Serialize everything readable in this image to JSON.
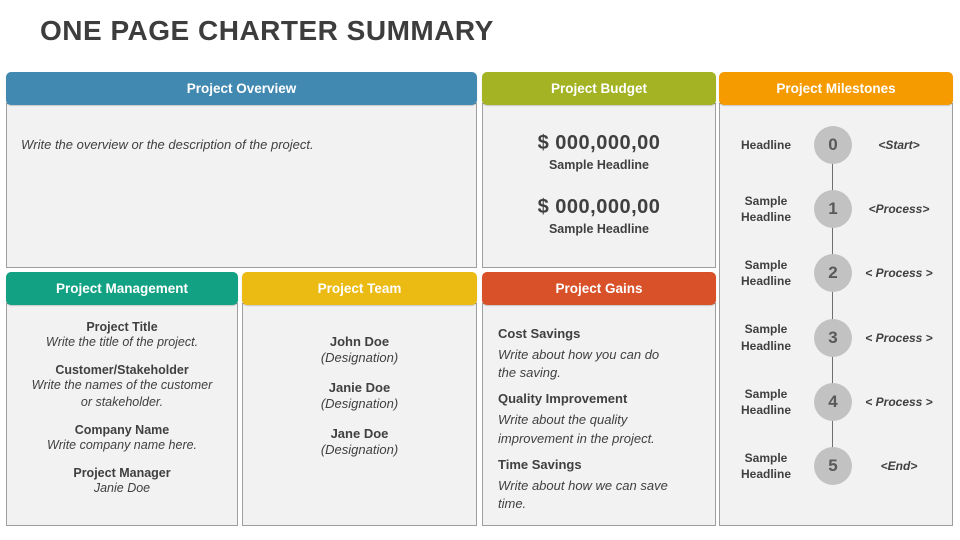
{
  "page_title": "ONE PAGE CHARTER SUMMARY",
  "colors": {
    "overview": "#4289b2",
    "budget": "#a3b324",
    "milestones": "#f59b00",
    "management": "#13a184",
    "team": "#ecbb13",
    "gains": "#d85128",
    "header_text": "#ffffff",
    "body_bg": "#f2f2f2",
    "circle_bg": "#c2c2c2"
  },
  "overview": {
    "header": "Project Overview",
    "body": "Write the overview or the description of the project."
  },
  "budget": {
    "header": "Project Budget",
    "items": [
      {
        "amount": "$ 000,000,00",
        "label": "Sample Headline"
      },
      {
        "amount": "$ 000,000,00",
        "label": "Sample Headline"
      }
    ]
  },
  "milestones": {
    "header": "Project Milestones",
    "items": [
      {
        "headline": "Headline",
        "number": "0",
        "stage": "<Start>"
      },
      {
        "headline": "Sample Headline",
        "number": "1",
        "stage": "<Process>"
      },
      {
        "headline": "Sample Headline",
        "number": "2",
        "stage": "< Process >"
      },
      {
        "headline": "Sample Headline",
        "number": "3",
        "stage": "< Process >"
      },
      {
        "headline": "Sample Headline",
        "number": "4",
        "stage": "< Process >"
      },
      {
        "headline": "Sample Headline",
        "number": "5",
        "stage": "<End>"
      }
    ]
  },
  "management": {
    "header": "Project Management",
    "items": [
      {
        "title": "Project Title",
        "desc": "Write the title of the project."
      },
      {
        "title": "Customer/Stakeholder",
        "desc": "Write the names of the customer or stakeholder."
      },
      {
        "title": "Company Name",
        "desc": "Write company name here."
      },
      {
        "title": "Project Manager",
        "desc": "Janie Doe"
      }
    ]
  },
  "team": {
    "header": "Project Team",
    "members": [
      {
        "name": "John Doe",
        "designation": "(Designation)"
      },
      {
        "name": "Janie Doe",
        "designation": "(Designation)"
      },
      {
        "name": "Jane Doe",
        "designation": "(Designation)"
      }
    ]
  },
  "gains": {
    "header": "Project Gains",
    "items": [
      {
        "title": "Cost Savings",
        "desc": "Write about how you can do the saving."
      },
      {
        "title": "Quality Improvement",
        "desc": "Write about the quality improvement in the project."
      },
      {
        "title": "Time Savings",
        "desc": "Write about how we can save time."
      }
    ]
  }
}
